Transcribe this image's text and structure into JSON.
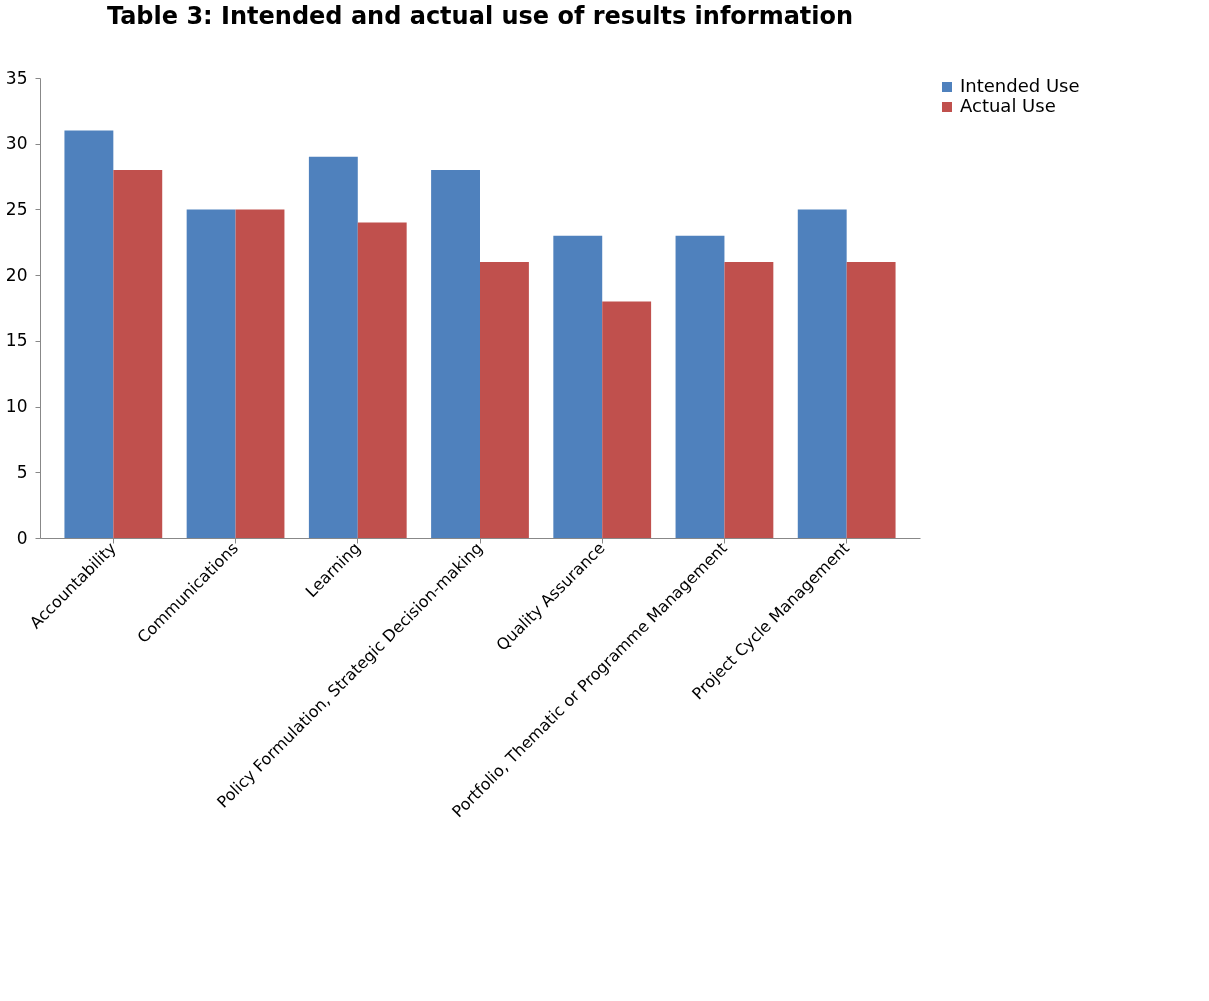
{
  "chart_data": {
    "type": "bar",
    "title": "Table 3: Intended and actual use of results information",
    "categories": [
      "Accountability",
      "Communications",
      "Learning",
      "Policy Formulation, Strategic Decision-making",
      "Quality Assurance",
      "Portfolio, Thematic or Programme Management",
      "Project Cycle Management"
    ],
    "series": [
      {
        "name": "Intended Use",
        "color": "#4f81bd",
        "values": [
          31,
          25,
          29,
          28,
          23,
          23,
          25
        ]
      },
      {
        "name": "Actual Use",
        "color": "#c0504d",
        "values": [
          28,
          25,
          24,
          21,
          18,
          21,
          21
        ]
      }
    ],
    "ylim": [
      0,
      35
    ],
    "yticks": [
      0,
      5,
      10,
      15,
      20,
      25,
      30,
      35
    ],
    "grid": false,
    "legend": "right"
  }
}
